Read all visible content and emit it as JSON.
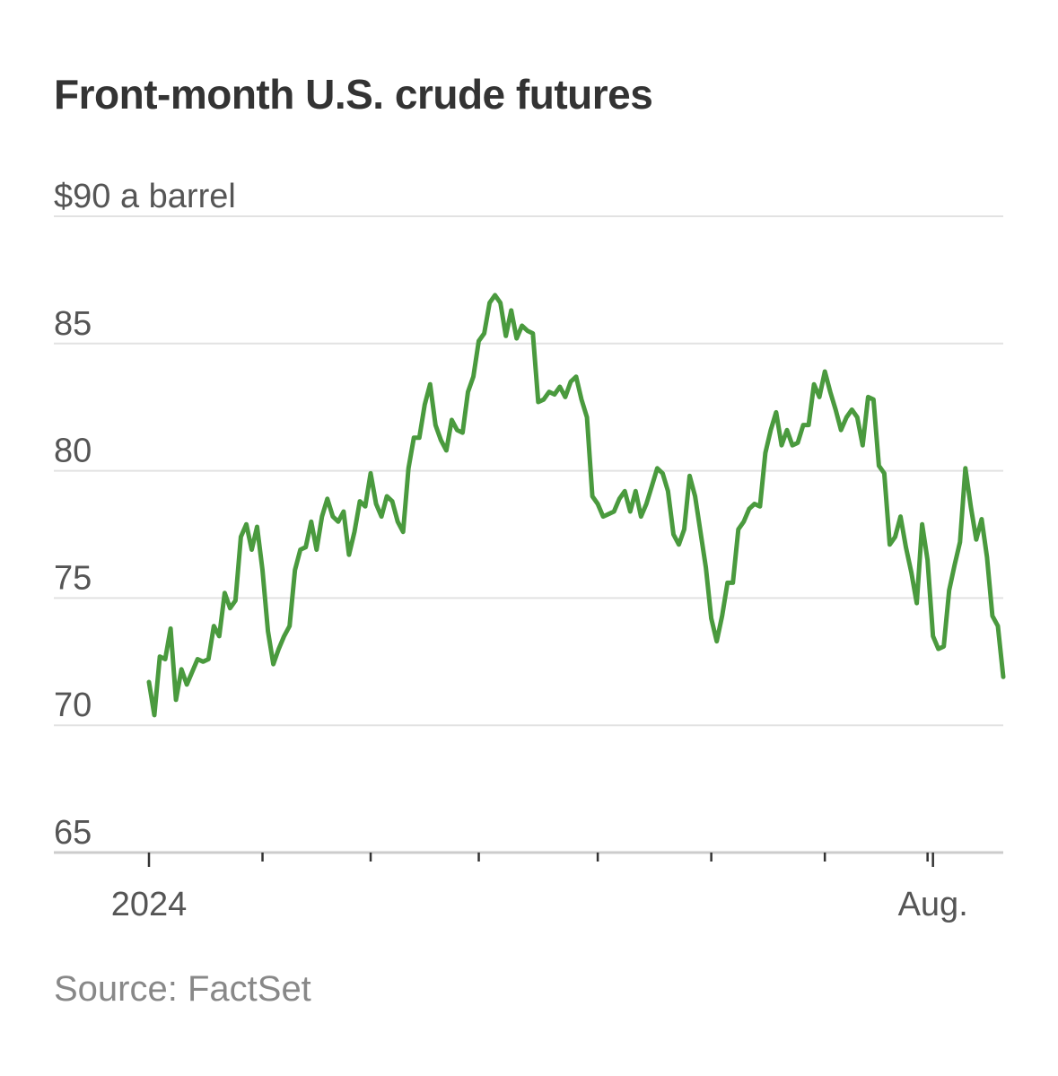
{
  "chart_data": {
    "type": "line",
    "title": "Front-month U.S. crude futures",
    "source": "Source: FactSet",
    "ylabel": "",
    "ylim": [
      65,
      90
    ],
    "y_ticks": [
      {
        "value": 90,
        "label": "$90 a barrel"
      },
      {
        "value": 85,
        "label": "85"
      },
      {
        "value": 80,
        "label": "80"
      },
      {
        "value": 75,
        "label": "75"
      },
      {
        "value": 70,
        "label": "70"
      },
      {
        "value": 65,
        "label": "65"
      }
    ],
    "x_tick_labels": [
      {
        "index": 0,
        "label": "2024"
      },
      {
        "index": 145,
        "label": "Aug."
      }
    ],
    "x_tick_indices": [
      0,
      21,
      41,
      61,
      83,
      104,
      125,
      144,
      145
    ],
    "colors": {
      "line": "#4a9a3e",
      "grid": "#e2e2e2",
      "axis": "#cccccc"
    },
    "series": [
      {
        "values": [
          71.7,
          70.4,
          72.7,
          72.6,
          73.8,
          71.0,
          72.2,
          71.6,
          72.1,
          72.6,
          72.5,
          72.6,
          73.9,
          73.5,
          75.2,
          74.6,
          74.9,
          77.4,
          77.9,
          76.9,
          77.8,
          76.1,
          73.7,
          72.4,
          73.0,
          73.5,
          73.9,
          76.1,
          76.9,
          77.0,
          78.0,
          76.9,
          78.2,
          78.9,
          78.2,
          78.0,
          78.4,
          76.7,
          77.6,
          78.8,
          78.6,
          79.9,
          78.7,
          78.2,
          79.0,
          78.8,
          78.0,
          77.6,
          80.1,
          81.3,
          81.3,
          82.6,
          83.4,
          81.8,
          81.2,
          80.8,
          82.0,
          81.6,
          81.5,
          83.1,
          83.7,
          85.1,
          85.4,
          86.6,
          86.9,
          86.6,
          85.3,
          86.3,
          85.2,
          85.7,
          85.5,
          85.4,
          82.7,
          82.8,
          83.1,
          83.0,
          83.3,
          82.9,
          83.5,
          83.7,
          82.8,
          82.1,
          79.0,
          78.7,
          78.2,
          78.3,
          78.4,
          78.9,
          79.2,
          78.4,
          79.2,
          78.2,
          78.7,
          79.4,
          80.1,
          79.9,
          79.2,
          77.5,
          77.1,
          77.7,
          79.8,
          79.0,
          77.6,
          76.2,
          74.2,
          73.3,
          74.3,
          75.6,
          75.6,
          77.7,
          78.0,
          78.5,
          78.7,
          78.6,
          80.7,
          81.6,
          82.3,
          81.0,
          81.6,
          81.0,
          81.1,
          81.8,
          81.8,
          83.4,
          82.9,
          83.9,
          83.1,
          82.4,
          81.6,
          82.1,
          82.4,
          82.1,
          81.0,
          82.9,
          82.8,
          80.2,
          79.9,
          77.1,
          77.4,
          78.2,
          77.0,
          76.0,
          74.8,
          77.9,
          76.5,
          73.5,
          73.0,
          73.1,
          75.3,
          76.3,
          77.2,
          80.1,
          78.6,
          77.3,
          78.1,
          76.6,
          74.3,
          73.9,
          71.9
        ]
      }
    ]
  }
}
